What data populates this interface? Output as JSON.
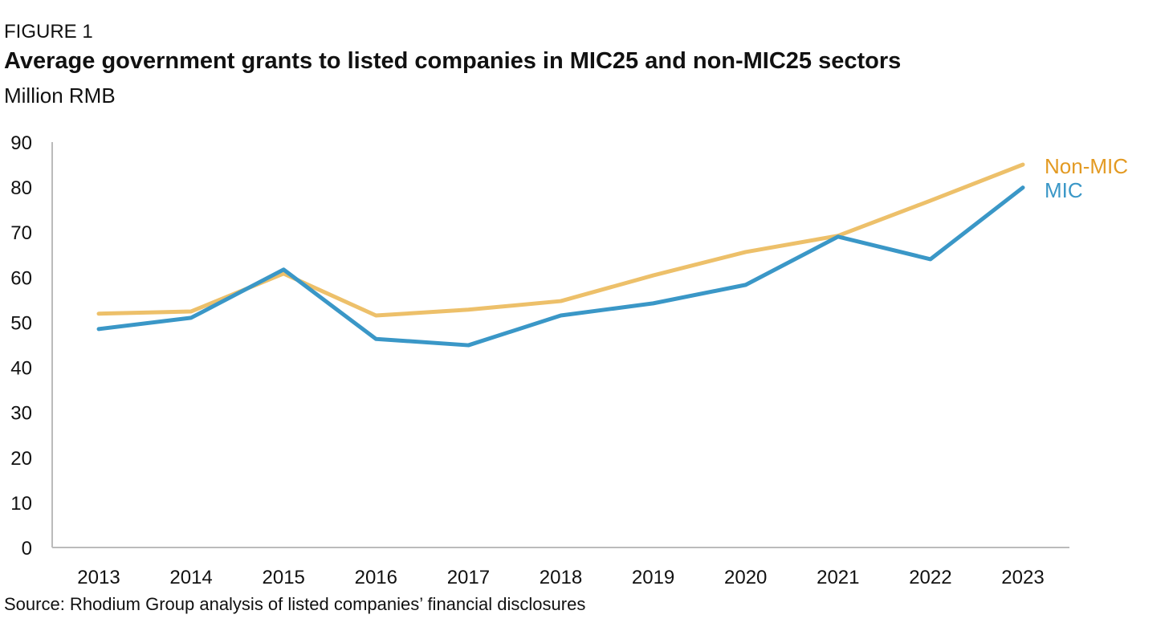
{
  "header": {
    "figure_label": "FIGURE 1",
    "title": "Average government grants to listed companies in MIC25 and non-MIC25 sectors",
    "subtitle": "Million RMB"
  },
  "source": "Source: Rhodium Group analysis of listed companies’ financial disclosures",
  "chart_data": {
    "type": "line",
    "title": "Average government grants to listed companies in MIC25 and non-MIC25 sectors",
    "ylabel": "Million RMB",
    "xlabel": "",
    "ylim": [
      0,
      90
    ],
    "yticks": [
      0,
      10,
      20,
      30,
      40,
      50,
      60,
      70,
      80,
      90
    ],
    "categories": [
      "2013",
      "2014",
      "2015",
      "2016",
      "2017",
      "2018",
      "2019",
      "2020",
      "2021",
      "2022",
      "2023"
    ],
    "grid": false,
    "legend": "right, inline end-labels",
    "series": [
      {
        "name": "Non-MIC",
        "color": "#EDC06A",
        "label_color": "#E39A22",
        "values": [
          51.9,
          52.4,
          60.8,
          51.5,
          52.8,
          54.7,
          60.4,
          65.6,
          69.2,
          77.0,
          85.0
        ]
      },
      {
        "name": "MIC",
        "color": "#3A97C7",
        "label_color": "#3A97C7",
        "values": [
          48.5,
          51.0,
          61.7,
          46.3,
          44.9,
          51.5,
          54.2,
          58.3,
          69.0,
          64.0,
          79.9
        ]
      }
    ]
  }
}
